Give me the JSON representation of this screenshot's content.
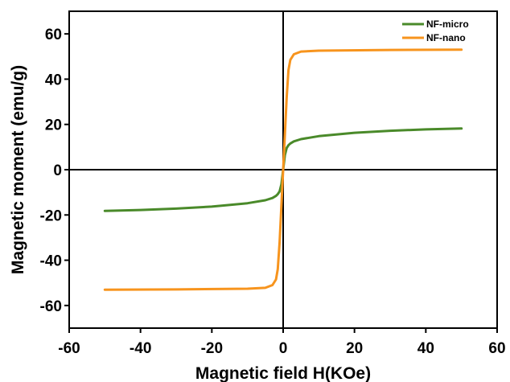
{
  "chart_data": {
    "type": "line",
    "xlabel": "Magnetic field H(KOe)",
    "ylabel": "Magnetic moment (emu/g)",
    "xlim": [
      -60,
      60
    ],
    "ylim": [
      -70,
      70
    ],
    "x_ticks": [
      -60,
      -40,
      -20,
      0,
      20,
      40,
      60
    ],
    "y_ticks": [
      -60,
      -40,
      -20,
      0,
      20,
      40,
      60
    ],
    "zero_lines": true,
    "grid": false,
    "legend_position": "top-right",
    "series": [
      {
        "name": "NF-micro",
        "color": "#4a8a2a",
        "x": [
          -50,
          -40,
          -30,
          -20,
          -10,
          -5,
          -3,
          -2,
          -1.5,
          -1,
          -0.5,
          0,
          0.5,
          1,
          1.5,
          2,
          3,
          5,
          10,
          20,
          30,
          40,
          50
        ],
        "y": [
          -18.2,
          -17.8,
          -17.2,
          -16.3,
          -14.8,
          -13.5,
          -12.5,
          -11.6,
          -10.8,
          -9.6,
          -6.5,
          0,
          6.5,
          9.6,
          10.8,
          11.6,
          12.5,
          13.5,
          14.8,
          16.3,
          17.2,
          17.8,
          18.2
        ]
      },
      {
        "name": "NF-nano",
        "color": "#f7941d",
        "x": [
          -50,
          -30,
          -10,
          -5,
          -3,
          -2,
          -1.5,
          -1,
          -0.5,
          0,
          0.5,
          1,
          1.5,
          2,
          3,
          5,
          10,
          30,
          50
        ],
        "y": [
          -53,
          -52.9,
          -52.6,
          -52.2,
          -51,
          -48.5,
          -44,
          -32,
          -16,
          0,
          16,
          32,
          44,
          48.5,
          51,
          52.2,
          52.6,
          52.9,
          53
        ]
      }
    ]
  }
}
